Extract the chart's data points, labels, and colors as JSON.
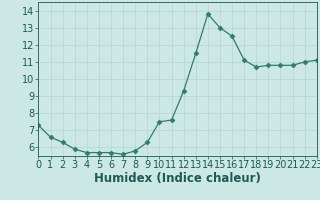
{
  "x": [
    0,
    1,
    2,
    3,
    4,
    5,
    6,
    7,
    8,
    9,
    10,
    11,
    12,
    13,
    14,
    15,
    16,
    17,
    18,
    19,
    20,
    21,
    22,
    23
  ],
  "y": [
    7.3,
    6.6,
    6.3,
    5.9,
    5.7,
    5.7,
    5.7,
    5.6,
    5.8,
    6.3,
    7.5,
    7.6,
    9.3,
    11.5,
    13.8,
    13.0,
    12.5,
    11.1,
    10.7,
    10.8,
    10.8,
    10.8,
    11.0,
    11.1
  ],
  "xlabel": "Humidex (Indice chaleur)",
  "xlim": [
    0,
    23
  ],
  "ylim": [
    5.5,
    14.5
  ],
  "yticks": [
    6,
    7,
    8,
    9,
    10,
    11,
    12,
    13,
    14
  ],
  "xticks": [
    0,
    1,
    2,
    3,
    4,
    5,
    6,
    7,
    8,
    9,
    10,
    11,
    12,
    13,
    14,
    15,
    16,
    17,
    18,
    19,
    20,
    21,
    22,
    23
  ],
  "line_color": "#2e7d6e",
  "marker": "D",
  "marker_size": 2.5,
  "bg_color": "#cce8e4",
  "grid_color": "#b8d4d0",
  "font_color": "#1a5c52",
  "xlabel_fontsize": 8.5,
  "tick_fontsize": 7
}
